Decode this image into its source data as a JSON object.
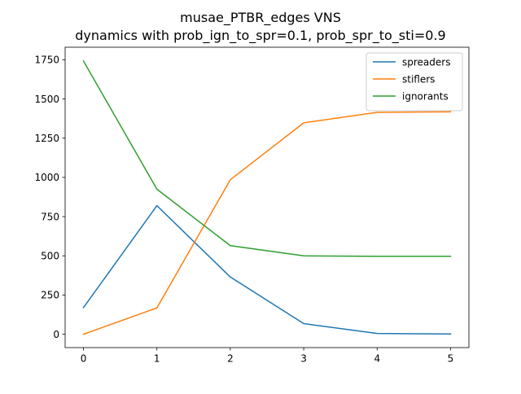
{
  "chart_data": {
    "type": "line",
    "title": "musae_PTBR_edges VNS",
    "subtitle": "dynamics with prob_ign_to_spr=0.1, prob_spr_to_sti=0.9",
    "xlabel": "",
    "ylabel": "",
    "x": [
      0,
      1,
      2,
      3,
      4,
      5
    ],
    "xlim": [
      -0.25,
      5.25
    ],
    "ylim": [
      -85,
      1830
    ],
    "xticks": [
      0,
      1,
      2,
      3,
      4,
      5
    ],
    "yticks": [
      0,
      250,
      500,
      750,
      1000,
      1250,
      1500,
      1750
    ],
    "grid": false,
    "legend_position": "top-right",
    "series": [
      {
        "name": "spreaders",
        "color": "#1f77b4",
        "values": [
          170,
          820,
          365,
          68,
          5,
          2
        ]
      },
      {
        "name": "stiflers",
        "color": "#ff7f0e",
        "values": [
          0,
          168,
          985,
          1348,
          1415,
          1418
        ]
      },
      {
        "name": "ignorants",
        "color": "#2ca02c",
        "values": [
          1742,
          925,
          565,
          500,
          497,
          497
        ]
      }
    ]
  }
}
